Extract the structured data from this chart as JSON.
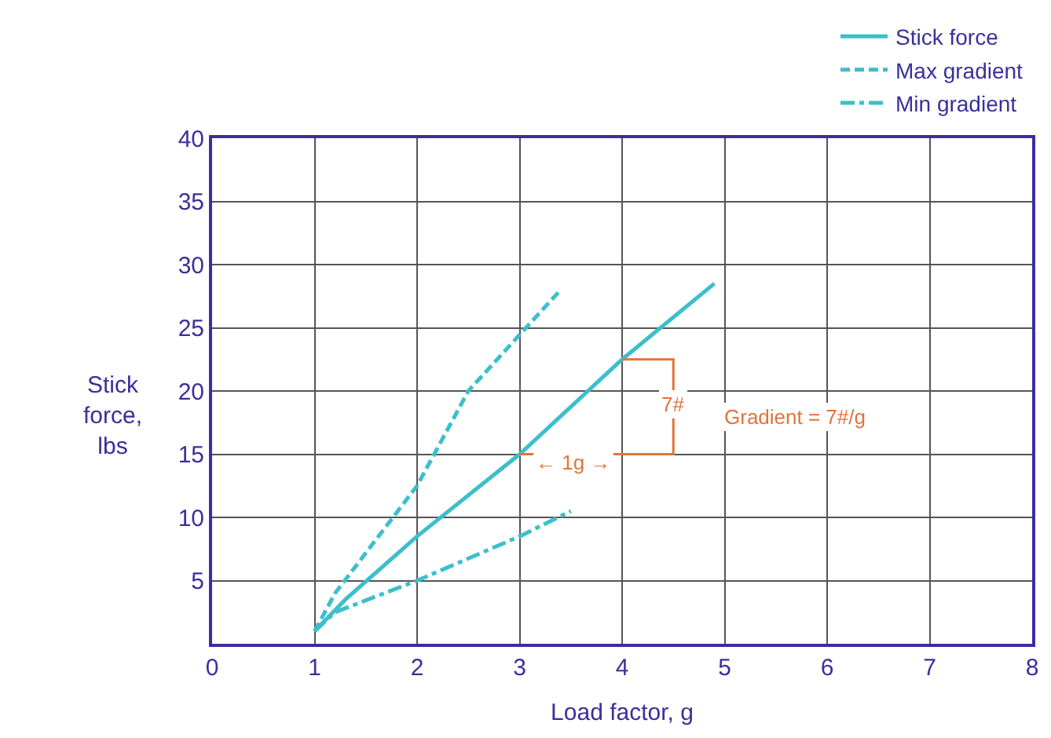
{
  "chart_data": {
    "type": "line",
    "xlabel": "Load factor, g",
    "ylabel": "Stick force, lbs",
    "x": [
      1,
      1.3,
      2,
      3,
      4,
      4.9
    ],
    "series": [
      {
        "name": "Stick force",
        "color": "#3cbfcb",
        "line_style": "solid",
        "values": [
          1,
          3.5,
          8.5,
          15,
          22.5,
          28.5
        ]
      },
      {
        "name": "Max gradient",
        "color": "#3cbfcb",
        "line_style": "dashed",
        "x": [
          1,
          1.2,
          2,
          2.5,
          3.4
        ],
        "values": [
          1,
          4,
          12.5,
          20,
          28
        ]
      },
      {
        "name": "Min gradient",
        "color": "#3cbfcb",
        "line_style": "dashdot",
        "x": [
          1,
          1.2,
          2,
          3,
          3.5
        ],
        "values": [
          1,
          2.5,
          5,
          8.5,
          10.5
        ]
      },
      {
        "color": "#e0743a",
        "line_style": "solid",
        "x": [
          3,
          4.5,
          4.5,
          4
        ],
        "values": [
          15,
          15,
          22.5,
          22.5
        ]
      }
    ],
    "xlim": [
      0,
      8
    ],
    "xticks": [
      0,
      1,
      2,
      3,
      4,
      5,
      6,
      7,
      8
    ],
    "ylim": [
      0,
      40
    ],
    "yticks": [
      {
        "value": 0,
        "label": null
      },
      5,
      10,
      15,
      20,
      25,
      30,
      35,
      40
    ],
    "grid": true,
    "legend": "top right",
    "marker": "none",
    "annotations": [
      {
        "text": "7#",
        "x": 4.5,
        "y": 19
      },
      "← 1g →",
      "Gradient = 7#/g"
    ]
  }
}
